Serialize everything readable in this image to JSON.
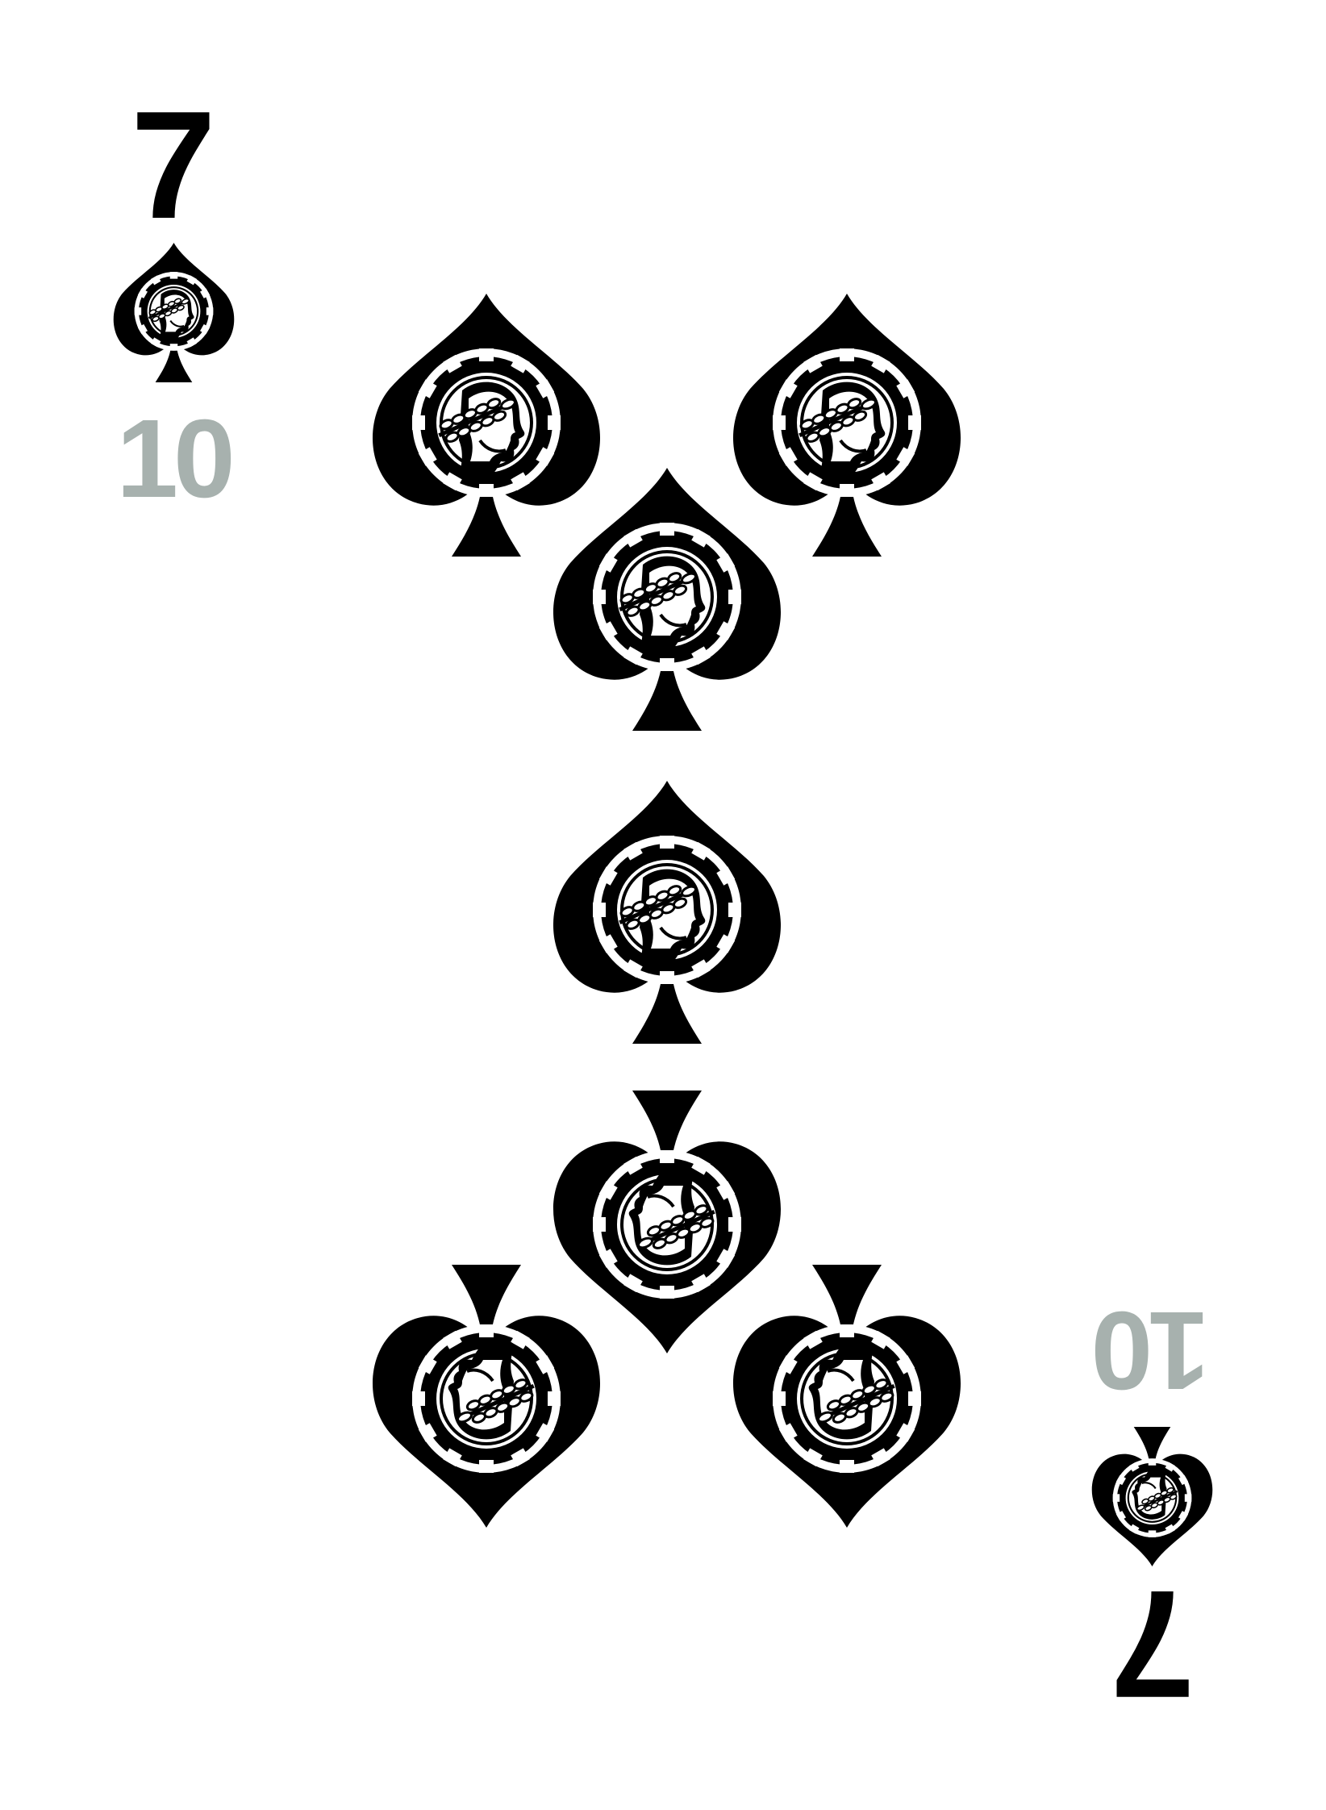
{
  "card": {
    "rank": "7",
    "suit": "spades",
    "value": "10",
    "value_color": "#A7B1AE",
    "ink_color": "#000000",
    "background_color": "#FFFFFF",
    "pip_icon": "spade-with-gear-profile-emblem-icon"
  }
}
